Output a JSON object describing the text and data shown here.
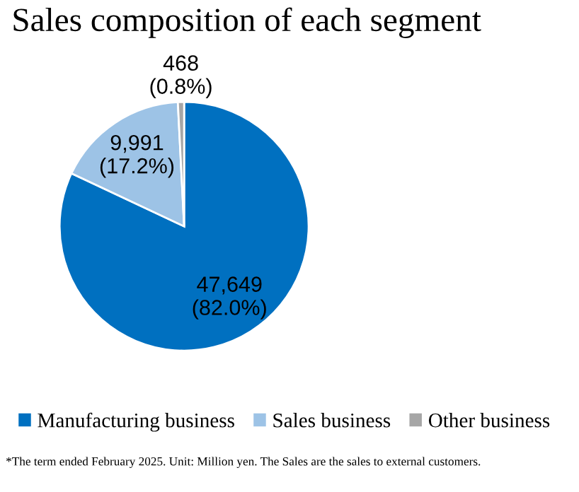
{
  "chart_data": {
    "type": "pie",
    "title": "Sales composition of each segment",
    "categories": [
      "Manufacturing business",
      "Sales business",
      "Other business"
    ],
    "values": [
      47649,
      9991,
      468
    ],
    "colors": [
      "#0070c0",
      "#9dc3e6",
      "#a6a6a6"
    ],
    "value_labels": [
      "47,649\n(82.0%)",
      "9,991\n(17.2%)",
      "468\n(0.8%)"
    ],
    "legend": "bottom",
    "annotations": [
      "*The term ended February 2025. Unit: Million yen. The Sales are the sales to external customers."
    ]
  }
}
